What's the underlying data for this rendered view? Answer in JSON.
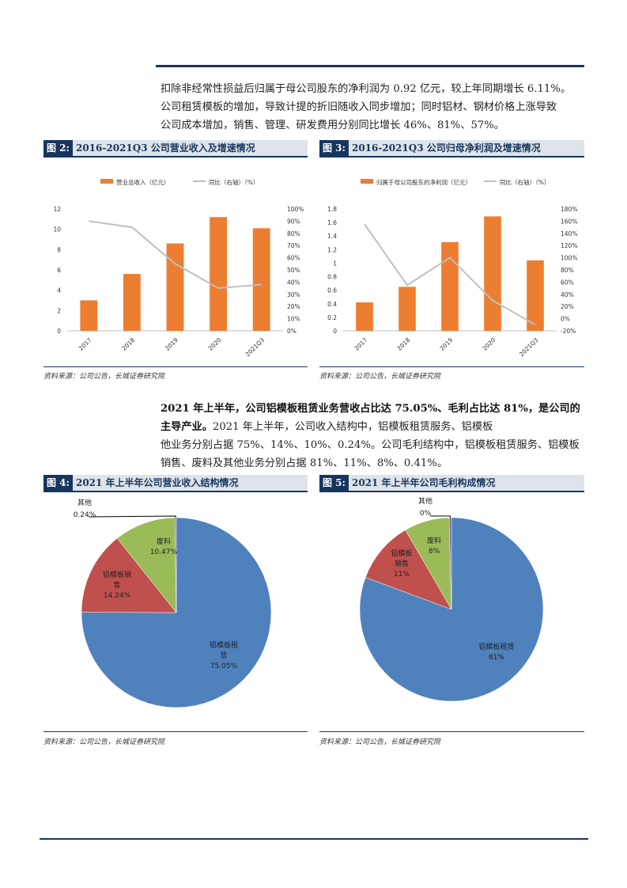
{
  "paragraph1": {
    "line1": "扣除非经常性损益后归属于母公司股东的净利润为 0.92 亿元，较上年同期增长 6.11%。",
    "line2": "公司租赁模板的增加，导致计提的折旧随收入同步增加；同时铝材、钢材价格上涨导致",
    "line3": "公司成本增加，销售、管理、研发费用分别同比增长 46%、81%、57%。"
  },
  "paragraph2": {
    "bold1": "2021 年上半年，公司铝模板租赁业务营收占比达 75.05%、毛利占比达 81%，是公司的",
    "bold2": "主导产业。",
    "rest2": "2021 年上半年，公司收入结构中，铝模板租赁服务、铝模板",
    "line3": "销售、废料及其他业务分别占据 75%、14%、10%、0.24%。公司毛利结构中，铝模板租赁服务、铝模板",
    "line3a": "他业务分别占据 75%、14%、10%、0.24%。公司毛利结构中，铝模板租赁服务、铝模板",
    "line4": "销售、废料及其他业务分别占据 81%、11%、8%、0.41%。"
  },
  "fig2": {
    "num": "图 2:",
    "title": "2016-2021Q3 公司营业收入及增速情况"
  },
  "fig3": {
    "num": "图 3:",
    "title": "2016-2021Q3 公司归母净利润及增速情况"
  },
  "fig4": {
    "num": "图 4:",
    "title": "2021 年上半年公司营业收入结构情况"
  },
  "fig5": {
    "num": "图 5:",
    "title": "2021 年上半年公司毛利构成情况"
  },
  "source_text": "资料来源：公司公告，长城证券研究院",
  "colors": {
    "bar": "#ed7d31",
    "line": "#bfbfbf",
    "blue": "#4f81bd",
    "red": "#c0504d",
    "green": "#9bbb59",
    "purple": "#8064a2",
    "navy": "#17365d"
  },
  "chart_data": [
    {
      "type": "bar",
      "id": "fig2",
      "categories": [
        "2017",
        "2018",
        "2019",
        "2020",
        "2021Q3"
      ],
      "series": [
        {
          "name": "营业总收入（亿元）",
          "kind": "bar",
          "axis": "left",
          "values": [
            3.0,
            5.6,
            8.6,
            11.2,
            10.1
          ]
        },
        {
          "name": "同比（右轴）（%）",
          "kind": "line",
          "axis": "right",
          "values": [
            90,
            85,
            55,
            35,
            38
          ]
        }
      ],
      "ylim": [
        0,
        12
      ],
      "yticks": [
        "0",
        "2",
        "4",
        "6",
        "8",
        "10",
        "12"
      ],
      "y2lim": [
        0,
        100
      ],
      "y2ticks": [
        "0%",
        "10%",
        "20%",
        "30%",
        "40%",
        "50%",
        "60%",
        "70%",
        "80%",
        "90%",
        "100%"
      ],
      "legend": "top"
    },
    {
      "type": "bar",
      "id": "fig3",
      "categories": [
        "2017",
        "2018",
        "2019",
        "2020",
        "2021Q3"
      ],
      "series": [
        {
          "name": "归属于母公司股东的净利润（亿元）",
          "kind": "bar",
          "axis": "left",
          "values": [
            0.42,
            0.65,
            1.31,
            1.69,
            1.04
          ]
        },
        {
          "name": "同比（右轴）（%）",
          "kind": "line",
          "axis": "right",
          "values": [
            155,
            55,
            100,
            30,
            -10
          ]
        }
      ],
      "ylim": [
        0,
        1.8
      ],
      "yticks": [
        "0",
        "0.2",
        "0.4",
        "0.6",
        "0.8",
        "1",
        "1.2",
        "1.4",
        "1.6",
        "1.8"
      ],
      "y2lim": [
        -20,
        180
      ],
      "y2ticks": [
        "-20%",
        "0%",
        "20%",
        "40%",
        "60%",
        "80%",
        "100%",
        "120%",
        "140%",
        "160%",
        "180%"
      ],
      "legend": "top"
    },
    {
      "type": "pie",
      "id": "fig4",
      "slices": [
        {
          "name": "铝模板租赁",
          "value": 75.05,
          "label": "75.05%"
        },
        {
          "name": "铝模板销售",
          "value": 14.24,
          "label": "14.24%"
        },
        {
          "name": "废料",
          "value": 10.47,
          "label": "10.47%"
        },
        {
          "name": "其他",
          "value": 0.24,
          "label": "0.24%"
        }
      ]
    },
    {
      "type": "pie",
      "id": "fig5",
      "slices": [
        {
          "name": "铝模板租赁",
          "value": 81,
          "label": "81%"
        },
        {
          "name": "铝模板销售",
          "value": 11,
          "label": "11%"
        },
        {
          "name": "废料",
          "value": 8,
          "label": "8%"
        },
        {
          "name": "其他",
          "value": 0.41,
          "label": "0%"
        }
      ]
    }
  ]
}
